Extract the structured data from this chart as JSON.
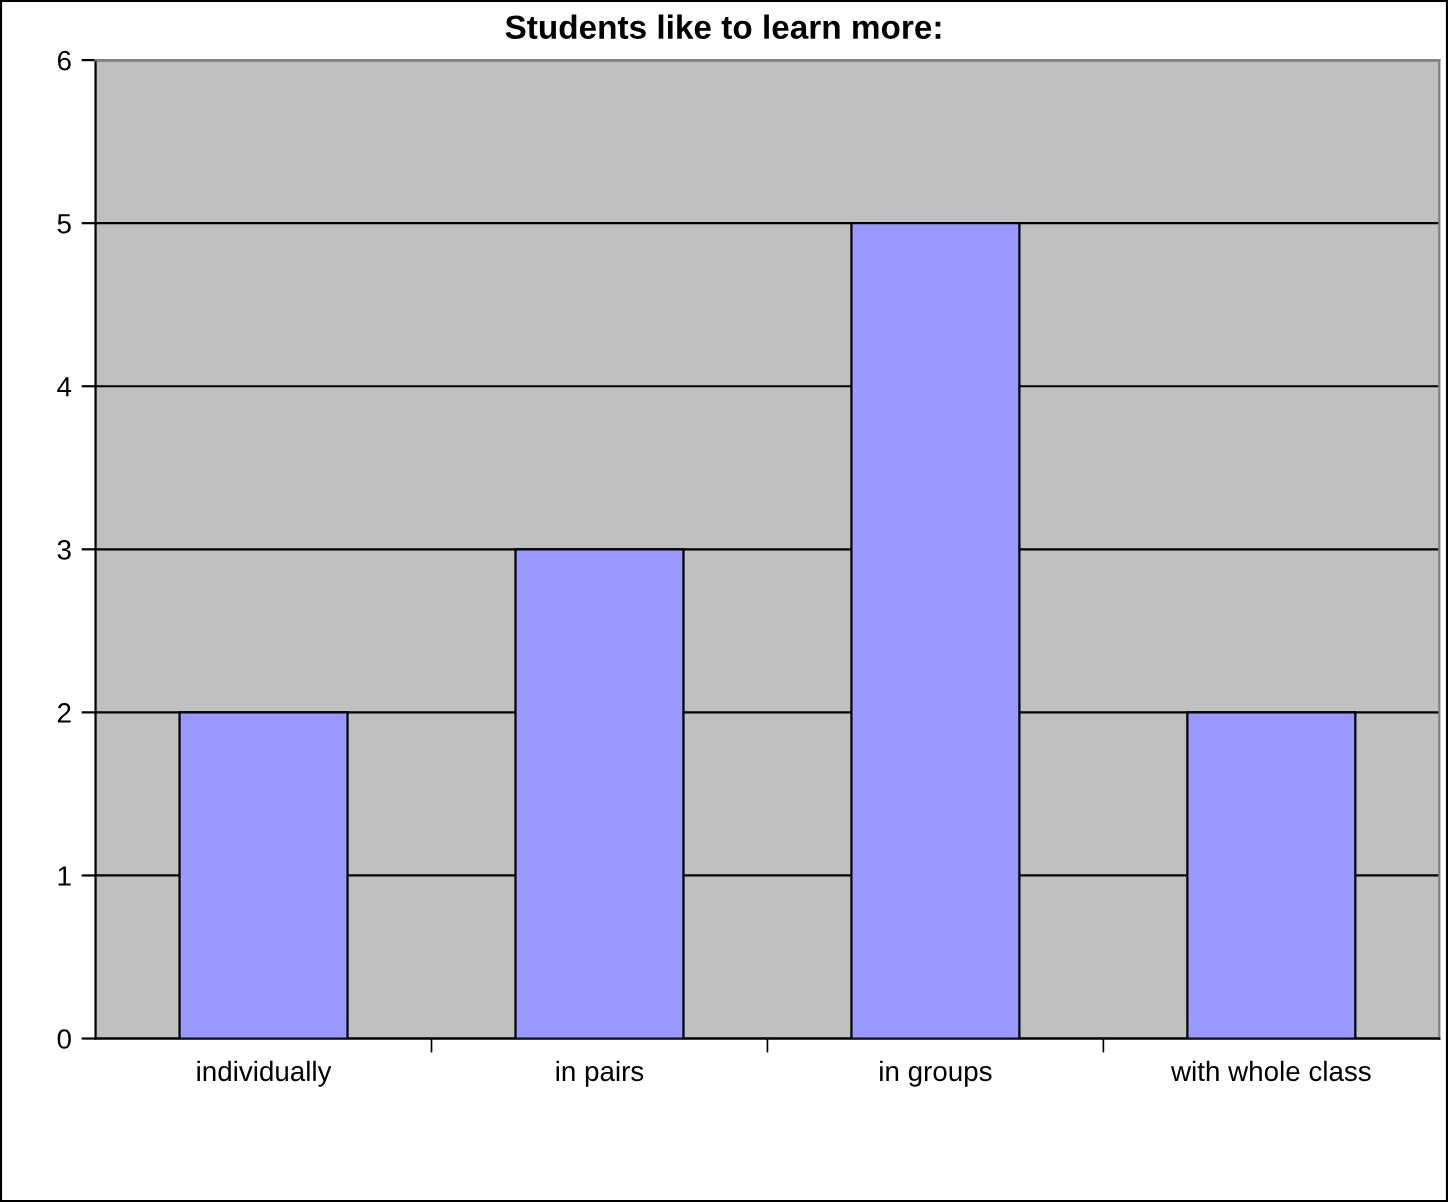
{
  "chart_data": {
    "type": "bar",
    "title": "Students like to learn more:",
    "categories": [
      "individually",
      "in pairs",
      "in groups",
      "with whole class"
    ],
    "values": [
      2,
      3,
      5,
      2
    ],
    "color": "#9999ff",
    "ylim": [
      0,
      6
    ],
    "yticks": [
      0,
      1,
      2,
      3,
      4,
      5,
      6
    ],
    "grid": "y"
  }
}
